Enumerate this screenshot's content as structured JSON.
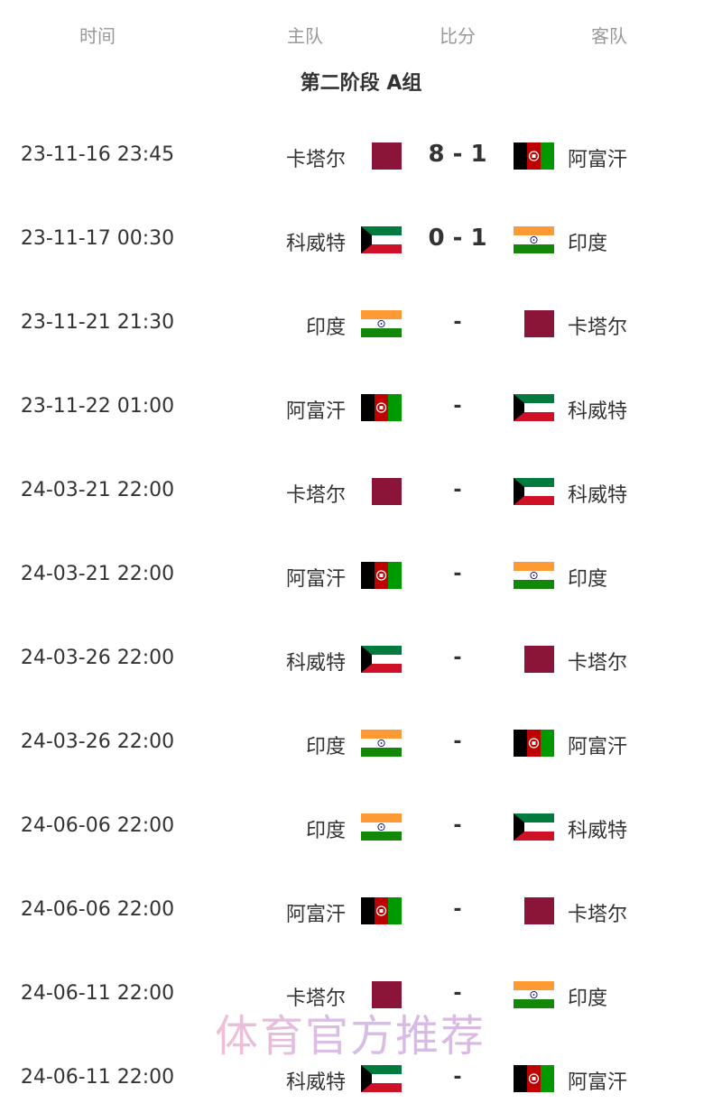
{
  "header": {
    "time": "时间",
    "home": "主队",
    "score": "比分",
    "away": "客队"
  },
  "title": "第二阶段 A组",
  "matches": [
    {
      "time": "23-11-16 23:45",
      "home": "卡塔尔",
      "home_flag": "qatar",
      "score": "8 - 1",
      "away": "阿富汗",
      "away_flag": "afghanistan"
    },
    {
      "time": "23-11-17 00:30",
      "home": "科威特",
      "home_flag": "kuwait",
      "score": "0 - 1",
      "away": "印度",
      "away_flag": "india"
    },
    {
      "time": "23-11-21 21:30",
      "home": "印度",
      "home_flag": "india",
      "score": "-",
      "away": "卡塔尔",
      "away_flag": "qatar"
    },
    {
      "time": "23-11-22 01:00",
      "home": "阿富汗",
      "home_flag": "afghanistan",
      "score": "-",
      "away": "科威特",
      "away_flag": "kuwait"
    },
    {
      "time": "24-03-21 22:00",
      "home": "卡塔尔",
      "home_flag": "qatar",
      "score": "-",
      "away": "科威特",
      "away_flag": "kuwait"
    },
    {
      "time": "24-03-21 22:00",
      "home": "阿富汗",
      "home_flag": "afghanistan",
      "score": "-",
      "away": "印度",
      "away_flag": "india"
    },
    {
      "time": "24-03-26 22:00",
      "home": "科威特",
      "home_flag": "kuwait",
      "score": "-",
      "away": "卡塔尔",
      "away_flag": "qatar"
    },
    {
      "time": "24-03-26 22:00",
      "home": "印度",
      "home_flag": "india",
      "score": "-",
      "away": "阿富汗",
      "away_flag": "afghanistan"
    },
    {
      "time": "24-06-06 22:00",
      "home": "印度",
      "home_flag": "india",
      "score": "-",
      "away": "科威特",
      "away_flag": "kuwait"
    },
    {
      "time": "24-06-06 22:00",
      "home": "阿富汗",
      "home_flag": "afghanistan",
      "score": "-",
      "away": "卡塔尔",
      "away_flag": "qatar"
    },
    {
      "time": "24-06-11 22:00",
      "home": "卡塔尔",
      "home_flag": "qatar",
      "score": "-",
      "away": "印度",
      "away_flag": "india"
    },
    {
      "time": "24-06-11 22:00",
      "home": "科威特",
      "home_flag": "kuwait",
      "score": "-",
      "away": "阿富汗",
      "away_flag": "afghanistan"
    }
  ],
  "watermark": "体育官方推荐"
}
